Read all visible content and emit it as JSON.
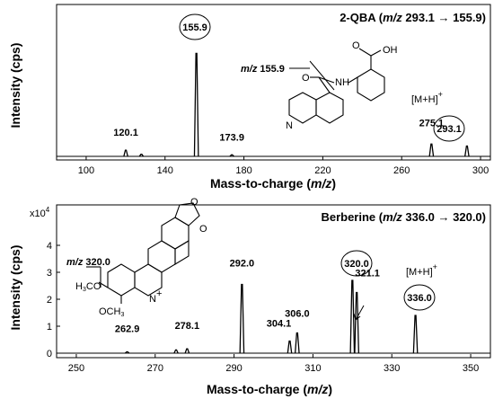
{
  "chart_data": [
    {
      "type": "line",
      "title_prefix": "2-QBA (",
      "title_italic": "m/z",
      "title_suffix": " 293.1 → 155.9)",
      "ylabel": "Intensity (cps)",
      "xlabel_prefix": "Mass-to-charge (",
      "xlabel_italic": "m/z",
      "xlabel_suffix": ")",
      "xlim": [
        85,
        305
      ],
      "ylim": [
        0,
        1.1
      ],
      "xticks": [
        100,
        140,
        180,
        220,
        260,
        300
      ],
      "y_ticks_shown": false,
      "peaks": [
        {
          "x": 120.1,
          "y": 0.06
        },
        {
          "x": 128.0,
          "y": 0.02
        },
        {
          "x": 155.9,
          "y": 1.0
        },
        {
          "x": 173.9,
          "y": 0.015
        },
        {
          "x": 275.1,
          "y": 0.12
        },
        {
          "x": 293.1,
          "y": 0.1
        }
      ],
      "peak_labels": [
        {
          "text": "120.1",
          "x": 120.1,
          "circled": false
        },
        {
          "text": "155.9",
          "x": 155.9,
          "circled": true
        },
        {
          "text": "173.9",
          "x": 173.9,
          "circled": false
        },
        {
          "text": "275.1",
          "x": 275.1,
          "circled": false
        },
        {
          "text": "293.1",
          "x": 293.1,
          "circled": true
        }
      ],
      "ion_label": "[M+H]",
      "ion_charge": "+",
      "fragment_label_italic": "m/z",
      "fragment_label_value": " 155.9",
      "structure_atom_labels": [
        "OH",
        "O",
        "NH",
        "O",
        "N"
      ]
    },
    {
      "type": "line",
      "title_prefix": "Berberine (",
      "title_italic": "m/z",
      "title_suffix": " 336.0 → 320.0)",
      "ylabel": "Intensity (cps)",
      "xlabel_prefix": "Mass-to-charge (",
      "xlabel_italic": "m/z",
      "xlabel_suffix": ")",
      "y_multiplier": "x10",
      "y_exponent": "4",
      "xlim": [
        245,
        355
      ],
      "ylim": [
        0,
        4.7
      ],
      "xticks": [
        250,
        270,
        290,
        310,
        330,
        350
      ],
      "yticks": [
        0,
        1,
        2,
        3,
        4
      ],
      "peaks": [
        {
          "x": 262.9,
          "y": 0.05
        },
        {
          "x": 275.3,
          "y": 0.12
        },
        {
          "x": 278.1,
          "y": 0.16
        },
        {
          "x": 292.0,
          "y": 2.55
        },
        {
          "x": 304.1,
          "y": 0.45
        },
        {
          "x": 306.0,
          "y": 0.75
        },
        {
          "x": 320.0,
          "y": 2.7
        },
        {
          "x": 321.1,
          "y": 2.25
        },
        {
          "x": 336.0,
          "y": 1.4
        }
      ],
      "peak_labels": [
        {
          "text": "262.9",
          "x": 262.9,
          "circled": false
        },
        {
          "text": "278.1",
          "x": 278.1,
          "circled": false
        },
        {
          "text": "292.0",
          "x": 292.0,
          "circled": false
        },
        {
          "text": "304.1",
          "x": 304.1,
          "circled": false
        },
        {
          "text": "306.0",
          "x": 306.0,
          "circled": false
        },
        {
          "text": "320.0",
          "x": 320.0,
          "circled": true
        },
        {
          "text": "321.1",
          "x": 321.1,
          "circled": false
        },
        {
          "text": "336.0",
          "x": 336.0,
          "circled": true
        }
      ],
      "ion_label": "[M+H]",
      "ion_charge": "+",
      "fragment_label_italic": "m/z",
      "fragment_label_value": " 320.0",
      "structure_atom_labels": [
        "O",
        "O",
        "N",
        "+",
        "OCH",
        "3",
        "H",
        "3",
        "C",
        "O"
      ]
    }
  ]
}
